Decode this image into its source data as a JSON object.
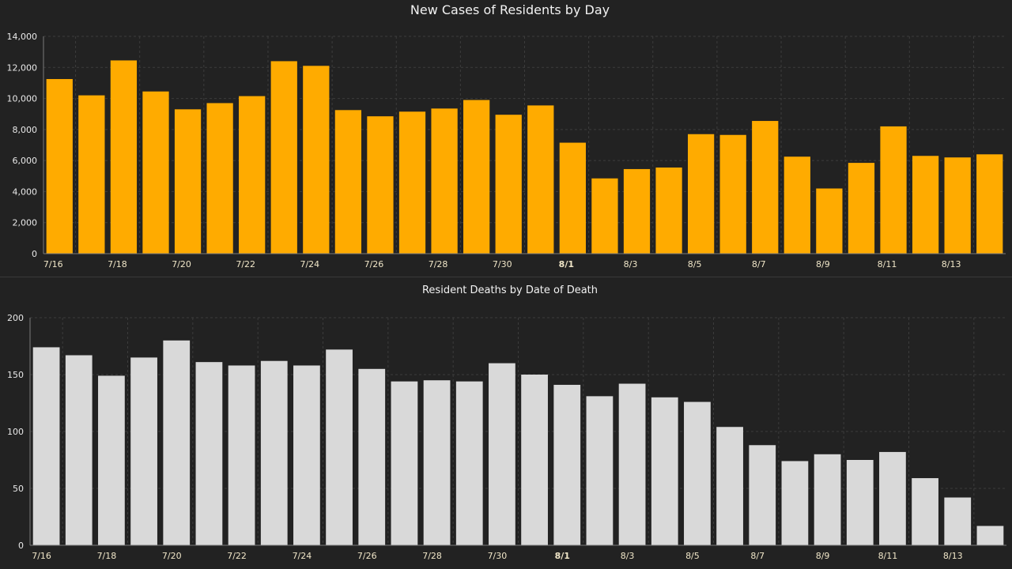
{
  "chart_data": [
    {
      "type": "bar",
      "title": "New Cases of Residents by Day",
      "categories": [
        "7/16",
        "7/17",
        "7/18",
        "7/19",
        "7/20",
        "7/21",
        "7/22",
        "7/23",
        "7/24",
        "7/25",
        "7/26",
        "7/27",
        "7/28",
        "7/29",
        "7/30",
        "7/31",
        "8/1",
        "8/2",
        "8/3",
        "8/4",
        "8/5",
        "8/6",
        "8/7",
        "8/8",
        "8/9",
        "8/10",
        "8/11",
        "8/12",
        "8/13",
        "8/14"
      ],
      "values": [
        11250,
        10200,
        12450,
        10450,
        9300,
        9700,
        10150,
        12400,
        12100,
        9250,
        8850,
        9150,
        9350,
        9900,
        8950,
        9550,
        7150,
        4850,
        5450,
        5550,
        7700,
        7650,
        8550,
        6250,
        4200,
        5850,
        8200,
        6300,
        6200,
        6400
      ],
      "x_tick_labels": [
        "7/16",
        "7/18",
        "7/20",
        "7/22",
        "7/24",
        "7/26",
        "7/28",
        "7/30",
        "8/1",
        "8/3",
        "8/5",
        "8/7",
        "8/9",
        "8/11",
        "8/13"
      ],
      "y_tick_labels": [
        "0",
        "2,000",
        "4,000",
        "6,000",
        "8,000",
        "10,000",
        "12,000",
        "14,000"
      ],
      "ylim": [
        0,
        14000
      ],
      "xlabel": "",
      "ylabel": "",
      "grid": true,
      "bar_color": "#ffab00"
    },
    {
      "type": "bar",
      "title": "Resident Deaths by Date of Death",
      "categories": [
        "7/16",
        "7/17",
        "7/18",
        "7/19",
        "7/20",
        "7/21",
        "7/22",
        "7/23",
        "7/24",
        "7/25",
        "7/26",
        "7/27",
        "7/28",
        "7/29",
        "7/30",
        "7/31",
        "8/1",
        "8/2",
        "8/3",
        "8/4",
        "8/5",
        "8/6",
        "8/7",
        "8/8",
        "8/9",
        "8/10",
        "8/11",
        "8/12",
        "8/13",
        "8/14"
      ],
      "values": [
        174,
        167,
        149,
        165,
        180,
        161,
        158,
        162,
        158,
        172,
        155,
        144,
        145,
        144,
        160,
        150,
        141,
        131,
        142,
        130,
        126,
        104,
        88,
        74,
        80,
        75,
        82,
        59,
        42,
        17
      ],
      "x_tick_labels": [
        "7/16",
        "7/18",
        "7/20",
        "7/22",
        "7/24",
        "7/26",
        "7/28",
        "7/30",
        "8/1",
        "8/3",
        "8/5",
        "8/7",
        "8/9",
        "8/11",
        "8/13"
      ],
      "y_tick_labels": [
        "0",
        "50",
        "100",
        "150",
        "200"
      ],
      "ylim": [
        0,
        200
      ],
      "xlabel": "",
      "ylabel": "",
      "grid": true,
      "bar_color": "#d9d9d9"
    }
  ]
}
